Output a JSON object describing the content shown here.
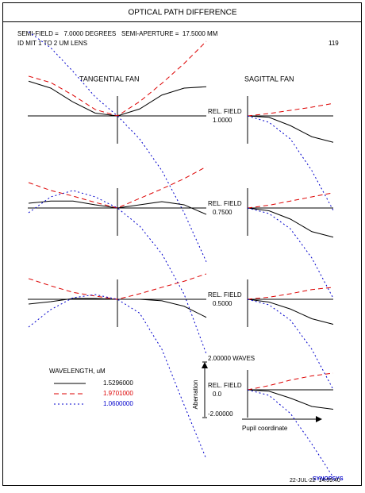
{
  "chart_data": {
    "type": "ray-fan",
    "title": "OPTICAL PATH DIFFERENCE",
    "info_line": "SEMI-FIELD =   7.0000 DEGREES   SEMI-APERTURE =  17.5000 MM",
    "lens_id": "ID MIT 1 TO 2 UM LENS",
    "page_number": "119",
    "tangential_title": "TANGENTIAL FAN",
    "sagittal_title": "SAGITTAL FAN",
    "field_label": "REL. FIELD",
    "pupil": [
      -1,
      -0.75,
      -0.5,
      -0.25,
      0,
      0.25,
      0.5,
      0.75,
      1
    ],
    "sagittal_pupil": [
      0,
      0.25,
      0.5,
      0.75,
      1
    ],
    "ylim": [
      -2,
      2
    ],
    "yticks": [
      {
        "value": 2,
        "label": "2.00000 WAVES"
      },
      {
        "value": -2,
        "label": "-2.00000"
      }
    ],
    "y_label": "Aberration",
    "x_label": "Pupil coordinate",
    "legend_title": "WAVELENGTH, uM",
    "series": [
      {
        "name": "1.5296000",
        "color": "#000000",
        "dash": "none"
      },
      {
        "name": "1.9701000",
        "color": "#dd0000",
        "dash": "6 4"
      },
      {
        "name": "1.0600000",
        "color": "#0000cc",
        "dash": "2 3"
      }
    ],
    "fields": [
      {
        "label": "1.0000",
        "tangential": [
          [
            2.5,
            2.0,
            1.0,
            0.2,
            0,
            0.5,
            1.5,
            2.0,
            2.1
          ],
          [
            2.86,
            2.4,
            1.49,
            0.46,
            0,
            1.03,
            2.34,
            3.77,
            5.37
          ],
          [
            6.06,
            4.9,
            3.2,
            1.37,
            0,
            -1.66,
            -3.94,
            -6.97,
            -10.5
          ]
        ],
        "sagittal": [
          [
            0,
            -0.1,
            -0.7,
            -1.5,
            -1.9
          ],
          [
            0,
            0.17,
            0.4,
            0.63,
            0.9
          ],
          [
            0,
            -0.46,
            -1.66,
            -3.94,
            -6.8
          ]
        ]
      },
      {
        "label": "0.7500",
        "tangential": [
          [
            0.34,
            0.5,
            0.5,
            0.23,
            0,
            0.23,
            0.46,
            0.23,
            -0.46
          ],
          [
            1.83,
            1.26,
            0.86,
            0.4,
            0,
            0.69,
            1.37,
            2.11,
            2.97
          ],
          [
            -0.34,
            0.8,
            1.26,
            0.8,
            0,
            -1.3,
            -3.3,
            -6.2,
            -10.5
          ]
        ],
        "sagittal": [
          [
            0,
            -0.2,
            -0.8,
            -1.7,
            -2.1
          ],
          [
            0,
            0.2,
            0.5,
            0.8,
            1.1
          ],
          [
            0,
            -0.4,
            -1.5,
            -3.6,
            -6.5
          ]
        ]
      },
      {
        "label": "0.5000",
        "tangential": [
          [
            -0.34,
            -0.17,
            0.06,
            0.06,
            0,
            0,
            -0.11,
            -0.5,
            -1.3
          ],
          [
            1.49,
            0.97,
            0.5,
            0.23,
            0,
            0.4,
            0.86,
            1.3,
            1.83
          ],
          [
            -2.0,
            -0.74,
            0.11,
            0.34,
            0,
            -1.0,
            -3.6,
            -7.6,
            -11.5
          ]
        ],
        "sagittal": [
          [
            0,
            -0.2,
            -0.7,
            -1.4,
            -1.8
          ],
          [
            0,
            0.15,
            0.4,
            0.7,
            0.86
          ],
          [
            0,
            -0.4,
            -1.5,
            -3.6,
            -6.5
          ]
        ]
      },
      {
        "label": "0.0",
        "sagittal": [
          [
            0,
            -0.1,
            -0.6,
            -1.2,
            -1.4
          ],
          [
            0,
            0.3,
            0.7,
            1.0,
            1.2
          ],
          [
            0,
            -0.4,
            -1.7,
            -3.9,
            -6.3
          ]
        ]
      }
    ],
    "program": "SYNOPSYS",
    "timestamp": "22-JUL-22  14:59:40"
  }
}
